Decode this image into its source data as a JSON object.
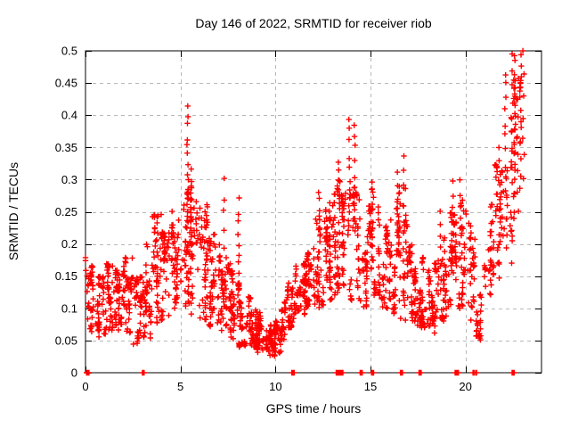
{
  "chart_data": {
    "type": "scatter",
    "title": "Day 146 of 2022, SRMTID for receiver riob",
    "xlabel": "GPS time / hours",
    "ylabel": "SRMTID / TECUs",
    "xlim": [
      0,
      24
    ],
    "ylim": [
      0,
      0.5
    ],
    "xticks": [
      0,
      5,
      10,
      15,
      20
    ],
    "xtick_labels": [
      "0",
      "5",
      "10",
      "15",
      "20"
    ],
    "yticks": [
      0,
      0.05,
      0.1,
      0.15,
      0.2,
      0.25,
      0.3,
      0.35,
      0.4,
      0.45,
      0.5
    ],
    "ytick_labels": [
      "0",
      "0.05",
      "0.1",
      "0.15",
      "0.2",
      "0.25",
      "0.3",
      "0.35",
      "0.4",
      "0.45",
      "0.5"
    ],
    "grid": true,
    "legend": "none",
    "marker": {
      "shape": "plus",
      "color": "#ff0000",
      "size": 7
    },
    "colors": {
      "marker": "#ff0000",
      "grid": "#b8b8b8",
      "axis": "#000000",
      "background": "#ffffff"
    },
    "seed": 7,
    "cloud_bins": [
      [
        0.0,
        0.5,
        0.05,
        0.18,
        40
      ],
      [
        0.5,
        1.0,
        0.05,
        0.15,
        42
      ],
      [
        1.0,
        1.5,
        0.06,
        0.17,
        45
      ],
      [
        1.5,
        2.0,
        0.06,
        0.16,
        45
      ],
      [
        2.0,
        2.5,
        0.06,
        0.18,
        44
      ],
      [
        2.5,
        3.0,
        0.04,
        0.15,
        40
      ],
      [
        3.0,
        3.5,
        0.05,
        0.2,
        44
      ],
      [
        3.5,
        4.0,
        0.07,
        0.25,
        46
      ],
      [
        4.0,
        4.5,
        0.08,
        0.22,
        44
      ],
      [
        4.5,
        5.0,
        0.1,
        0.26,
        46
      ],
      [
        5.0,
        5.5,
        0.1,
        0.3,
        44
      ],
      [
        5.5,
        6.0,
        0.09,
        0.29,
        40
      ],
      [
        6.0,
        6.5,
        0.08,
        0.26,
        44
      ],
      [
        6.5,
        7.0,
        0.07,
        0.22,
        44
      ],
      [
        7.0,
        7.5,
        0.06,
        0.2,
        44
      ],
      [
        7.5,
        8.0,
        0.05,
        0.17,
        45
      ],
      [
        8.0,
        8.5,
        0.04,
        0.14,
        46
      ],
      [
        8.5,
        9.0,
        0.04,
        0.12,
        46
      ],
      [
        9.0,
        9.5,
        0.03,
        0.1,
        50
      ],
      [
        9.5,
        10.0,
        0.025,
        0.075,
        55
      ],
      [
        10.0,
        10.5,
        0.03,
        0.1,
        46
      ],
      [
        10.5,
        11.0,
        0.07,
        0.14,
        40
      ],
      [
        11.0,
        11.5,
        0.09,
        0.17,
        45
      ],
      [
        11.5,
        12.0,
        0.1,
        0.19,
        45
      ],
      [
        12.0,
        12.5,
        0.1,
        0.24,
        45
      ],
      [
        12.5,
        13.0,
        0.11,
        0.26,
        45
      ],
      [
        13.0,
        13.5,
        0.12,
        0.3,
        44
      ],
      [
        13.5,
        14.0,
        0.12,
        0.28,
        40
      ],
      [
        14.0,
        14.5,
        0.11,
        0.29,
        40
      ],
      [
        14.5,
        15.0,
        0.1,
        0.26,
        40
      ],
      [
        15.0,
        15.5,
        0.12,
        0.29,
        40
      ],
      [
        15.5,
        16.0,
        0.1,
        0.25,
        40
      ],
      [
        16.0,
        16.5,
        0.09,
        0.28,
        40
      ],
      [
        16.5,
        17.0,
        0.08,
        0.3,
        40
      ],
      [
        17.0,
        17.5,
        0.08,
        0.2,
        45
      ],
      [
        17.5,
        18.0,
        0.07,
        0.18,
        45
      ],
      [
        18.0,
        18.5,
        0.06,
        0.17,
        45
      ],
      [
        18.5,
        19.0,
        0.08,
        0.21,
        40
      ],
      [
        19.0,
        19.5,
        0.1,
        0.25,
        40
      ],
      [
        19.5,
        20.0,
        0.1,
        0.27,
        38
      ],
      [
        20.0,
        20.5,
        0.08,
        0.24,
        34
      ],
      [
        20.5,
        21.0,
        0.05,
        0.14,
        18
      ],
      [
        21.0,
        21.5,
        0.12,
        0.27,
        34
      ],
      [
        21.5,
        22.0,
        0.14,
        0.33,
        34
      ],
      [
        22.0,
        22.5,
        0.17,
        0.4,
        26
      ],
      [
        22.5,
        23.0,
        0.2,
        0.46,
        26
      ]
    ],
    "spikes": [
      [
        5.38,
        0.23,
        0.41,
        14
      ],
      [
        5.55,
        0.15,
        0.31,
        10
      ],
      [
        6.4,
        0.18,
        0.255,
        6
      ],
      [
        7.3,
        0.2,
        0.3,
        5
      ],
      [
        8.05,
        0.13,
        0.27,
        9
      ],
      [
        12.3,
        0.18,
        0.285,
        8
      ],
      [
        12.85,
        0.15,
        0.27,
        7
      ],
      [
        13.35,
        0.2,
        0.33,
        9
      ],
      [
        13.9,
        0.28,
        0.4,
        7
      ],
      [
        14.15,
        0.25,
        0.39,
        8
      ],
      [
        15.1,
        0.18,
        0.3,
        8
      ],
      [
        16.45,
        0.18,
        0.31,
        8
      ],
      [
        16.75,
        0.15,
        0.33,
        9
      ],
      [
        18.7,
        0.15,
        0.25,
        6
      ],
      [
        19.35,
        0.15,
        0.3,
        8
      ],
      [
        19.7,
        0.18,
        0.3,
        7
      ],
      [
        20.6,
        0.05,
        0.1,
        6
      ],
      [
        21.8,
        0.2,
        0.35,
        9
      ],
      [
        22.1,
        0.28,
        0.47,
        10
      ],
      [
        22.45,
        0.3,
        0.5,
        9
      ],
      [
        22.6,
        0.3,
        0.5,
        14
      ],
      [
        22.75,
        0.25,
        0.45,
        8
      ],
      [
        22.9,
        0.28,
        0.5,
        10
      ],
      [
        23.05,
        0.3,
        0.5,
        7
      ]
    ],
    "baseline_points_hours": [
      0.08,
      0.12,
      0.16,
      3.02,
      3.06,
      10.88,
      10.92,
      10.96,
      13.22,
      13.28,
      13.34,
      13.44,
      13.52,
      14.48,
      14.54,
      15.08,
      15.14,
      16.6,
      16.66,
      17.58,
      17.64,
      19.48,
      19.54,
      19.6,
      20.42,
      20.56,
      22.48,
      22.54
    ]
  }
}
